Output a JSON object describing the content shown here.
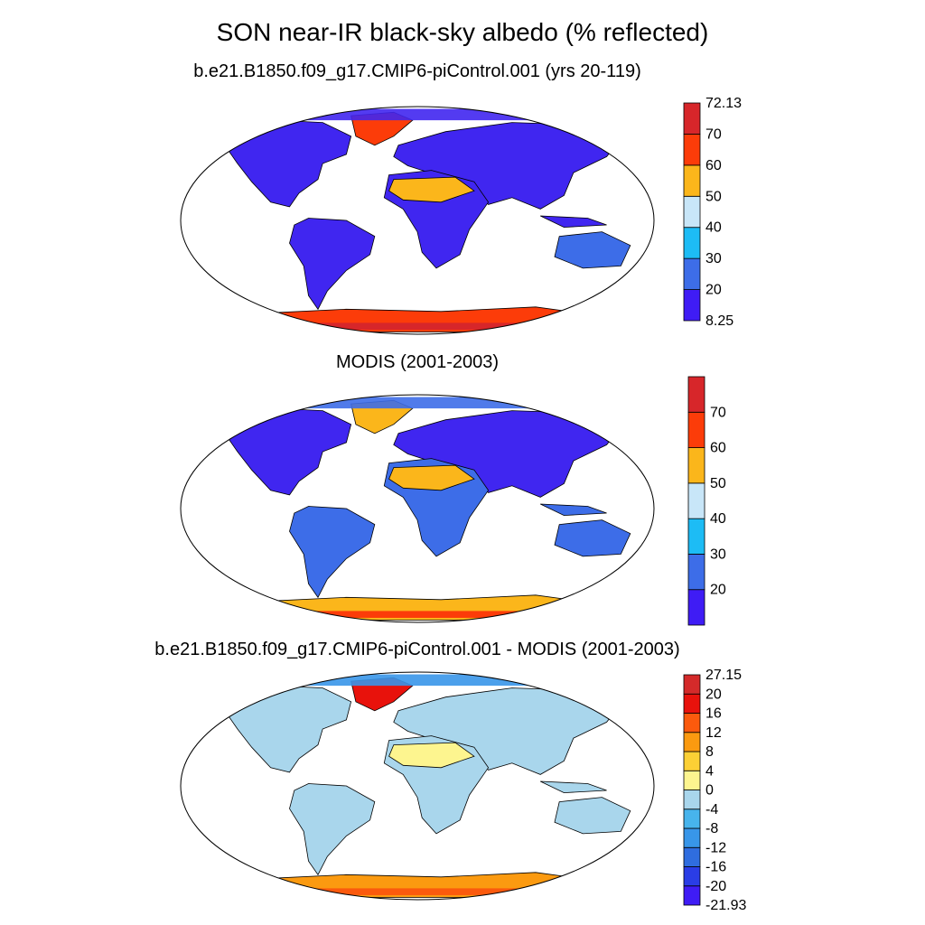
{
  "main_title": "SON near-IR black-sky albedo (% reflected)",
  "panels": [
    {
      "title": "b.e21.B1850.f09_g17.CMIP6-piControl.001 (yrs 20-119)",
      "colorbar": {
        "colors": [
          "#3f1cf5",
          "#3d6de8",
          "#1dbcf5",
          "#c8e6f8",
          "#fbb61b",
          "#fc3c09",
          "#d7262a"
        ],
        "labels": [
          "8.25",
          "20",
          "30",
          "40",
          "50",
          "60",
          "70",
          "72.13"
        ]
      }
    },
    {
      "title": "MODIS (2001-2003)",
      "colorbar": {
        "colors": [
          "#3f1cf5",
          "#3d6de8",
          "#1dbcf5",
          "#c8e6f8",
          "#fbb61b",
          "#fc3c09",
          "#d7262a"
        ],
        "labels": [
          "",
          "20",
          "30",
          "40",
          "50",
          "60",
          "70",
          ""
        ]
      }
    },
    {
      "title": "b.e21.B1850.f09_g17.CMIP6-piControl.001 - MODIS (2001-2003)",
      "colorbar": {
        "colors": [
          "#3f1cf5",
          "#2a3de6",
          "#2f6ddf",
          "#3896e9",
          "#47b4ec",
          "#a9d6ec",
          "#fdf58f",
          "#fcd035",
          "#fb9a10",
          "#fb5a0d",
          "#e8120c",
          "#d42a2a"
        ],
        "labels": [
          "-21.93",
          "-20",
          "-16",
          "-12",
          "-8",
          "-4",
          "0",
          "4",
          "8",
          "12",
          "16",
          "20",
          "27.15"
        ]
      }
    }
  ],
  "land_colors": {
    "panel_1": {
      "land": "#4026f0",
      "tropics": "#3d6de8",
      "desert": "#fbb61b",
      "desert_light": "#c8e6f8",
      "polar": "#fc3c09",
      "polar_hot": "#d7262a"
    },
    "panel_2": {
      "land": "#3d6de8",
      "high_lat": "#4026f0",
      "desert": "#fbb61b",
      "desert_light": "#c8e6f8",
      "polar": "#fbb61b",
      "polar_hot": "#fc3c09"
    },
    "panel_3": {
      "land": "#a9d6ec",
      "land_alt": "#fdf58f",
      "high_lat": "#3896e9",
      "arctic": "#e8120c",
      "polar": "#fb9a10",
      "polar_hot": "#fb5a0d"
    }
  }
}
